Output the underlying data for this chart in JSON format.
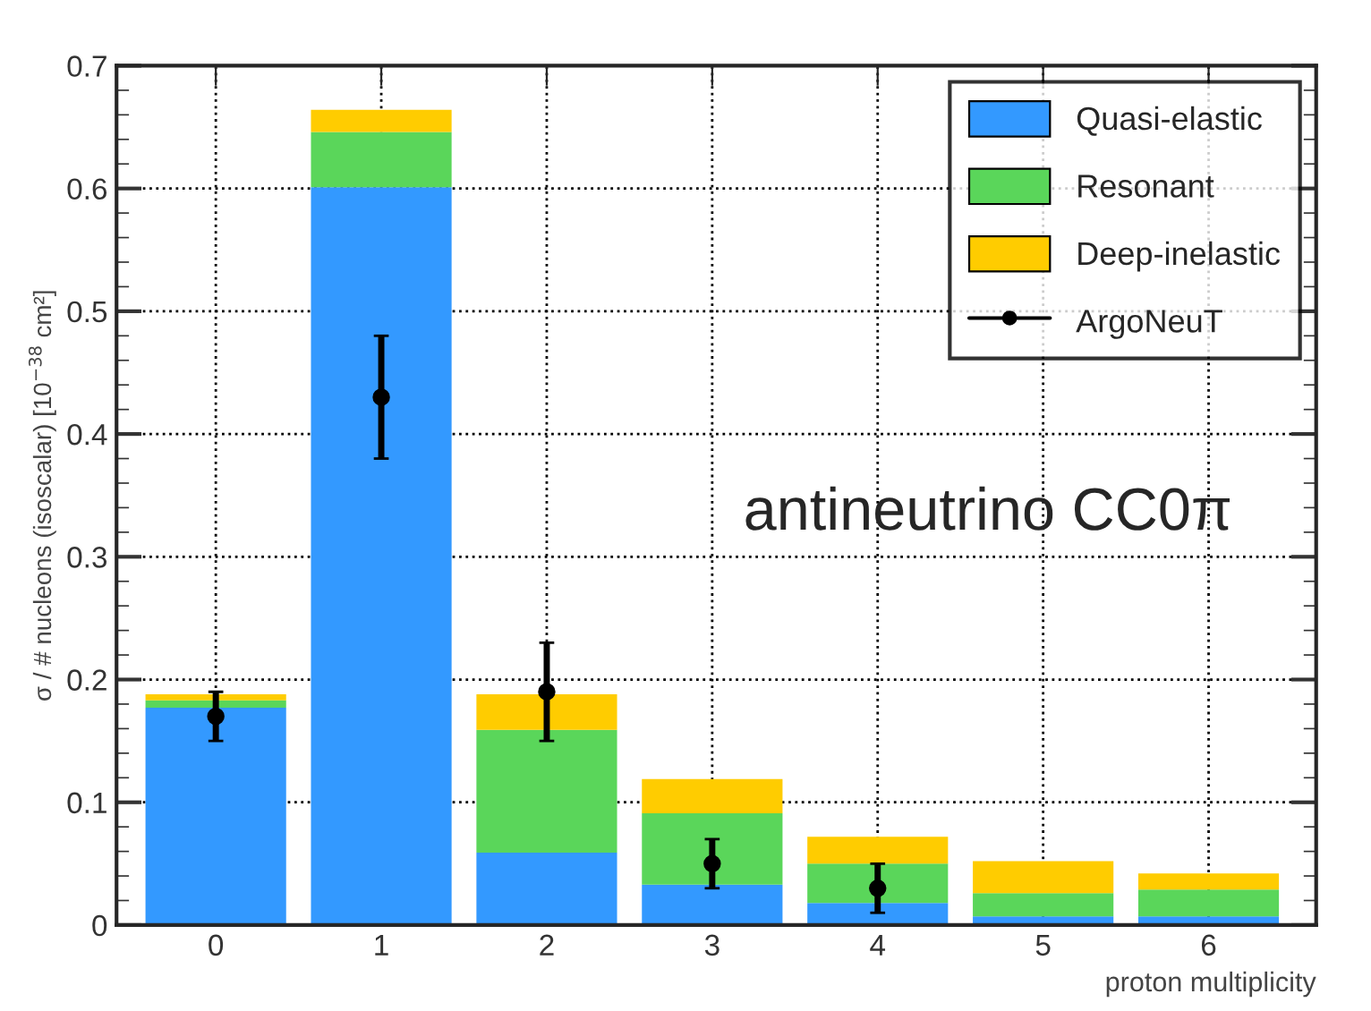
{
  "chart_data": {
    "type": "bar",
    "stacked": true,
    "xlabel": "proton multiplicity",
    "ylabel": "σ / # nucleons (isoscalar) [10$^{−38}$ cm²]",
    "categories": [
      "0",
      "1",
      "2",
      "3",
      "4",
      "5",
      "6"
    ],
    "series": [
      {
        "name": "Quasi-elastic",
        "color": "#3399ff",
        "values": [
          0.177,
          0.601,
          0.059,
          0.033,
          0.018,
          0.007,
          0.007
        ]
      },
      {
        "name": "Resonant",
        "color": "#5ad65a",
        "values": [
          0.006,
          0.045,
          0.1,
          0.058,
          0.032,
          0.019,
          0.022
        ]
      },
      {
        "name": "Deep-inelastic",
        "color": "#ffcc00",
        "values": [
          0.005,
          0.018,
          0.029,
          0.028,
          0.022,
          0.026,
          0.013
        ]
      },
      {
        "name": "ArgoNeuT",
        "type": "scatter",
        "color": "#000000",
        "marker": "circle",
        "x": [
          "0",
          "1",
          "2",
          "3",
          "4",
          "5",
          "6"
        ],
        "values": [
          0.17,
          0.43,
          0.19,
          0.05,
          0.03,
          null,
          null
        ],
        "errors": [
          0.02,
          0.05,
          0.04,
          0.02,
          0.02,
          null,
          null
        ]
      }
    ],
    "ylim": [
      0,
      0.7
    ],
    "yticks": [
      0,
      0.1,
      0.2,
      0.3,
      0.4,
      0.5,
      0.6,
      0.7
    ],
    "grid": true,
    "legend": "top right",
    "annotations": [
      "antineutrino CC0π"
    ]
  }
}
